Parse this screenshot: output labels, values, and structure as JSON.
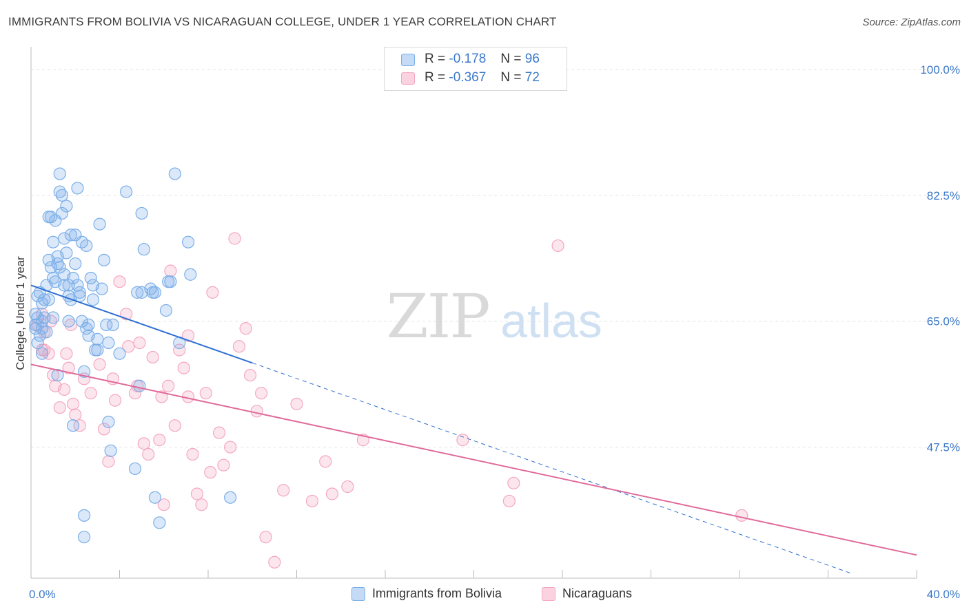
{
  "title": "IMMIGRANTS FROM BOLIVIA VS NICARAGUAN COLLEGE, UNDER 1 YEAR CORRELATION CHART",
  "source": "Source: ZipAtlas.com",
  "watermark": {
    "zip": "ZIP",
    "atlas": "atlas"
  },
  "legend": {
    "items": [
      {
        "r_label": "R =",
        "r_value": "-0.178",
        "n_label": "N =",
        "n_value": "96",
        "color": "#7aaee8"
      },
      {
        "r_label": "R =",
        "r_value": "-0.367",
        "n_label": "N =",
        "n_value": "72",
        "color": "#f4a6c0"
      }
    ]
  },
  "bottom_legend": [
    {
      "label": "Immigrants from Bolivia",
      "color": "#7aaee8"
    },
    {
      "label": "Nicaraguans",
      "color": "#f4a6c0"
    }
  ],
  "chart_data": {
    "type": "scatter",
    "ylabel": "College, Under 1 year",
    "xlabel": "",
    "xlim": [
      0,
      40
    ],
    "ylim": [
      31,
      102
    ],
    "x_tick_labels": [
      "0.0%",
      "40.0%"
    ],
    "y_ticks": [
      47.5,
      65.0,
      82.5,
      100.0
    ],
    "y_tick_labels": [
      "47.5%",
      "65.0%",
      "82.5%",
      "100.0%"
    ],
    "grid": true,
    "legend_position": "top-center",
    "series": [
      {
        "name": "Immigrants from Bolivia",
        "color": "#7aaee8",
        "trend_color": "#2e6fd1",
        "trend": {
          "x0": 0.0,
          "y0": 70.0,
          "x1": 10.0,
          "y1": 59.2,
          "dashed_to_x": 37.0,
          "dashed_to_y": 30.0
        },
        "points": [
          [
            0.2,
            66.0
          ],
          [
            0.2,
            64.5
          ],
          [
            0.3,
            68.5
          ],
          [
            0.3,
            62.0
          ],
          [
            0.3,
            65.5
          ],
          [
            0.4,
            69.0
          ],
          [
            0.4,
            63.0
          ],
          [
            0.5,
            67.5
          ],
          [
            0.5,
            65.0
          ],
          [
            0.5,
            60.5
          ],
          [
            0.5,
            64.0
          ],
          [
            0.6,
            68.0
          ],
          [
            0.6,
            65.5
          ],
          [
            0.7,
            70.0
          ],
          [
            0.7,
            63.5
          ],
          [
            0.8,
            73.5
          ],
          [
            0.8,
            68.0
          ],
          [
            0.8,
            79.5
          ],
          [
            0.9,
            72.5
          ],
          [
            0.9,
            79.5
          ],
          [
            1.0,
            71.0
          ],
          [
            1.0,
            76.0
          ],
          [
            1.0,
            65.5
          ],
          [
            1.1,
            79.0
          ],
          [
            1.1,
            70.5
          ],
          [
            1.2,
            74.0
          ],
          [
            1.2,
            73.0
          ],
          [
            1.2,
            57.5
          ],
          [
            1.3,
            83.0
          ],
          [
            1.3,
            85.5
          ],
          [
            1.3,
            72.5
          ],
          [
            1.4,
            82.5
          ],
          [
            1.4,
            80.0
          ],
          [
            1.5,
            76.5
          ],
          [
            1.5,
            71.5
          ],
          [
            1.5,
            70.0
          ],
          [
            1.6,
            74.5
          ],
          [
            1.6,
            81.0
          ],
          [
            1.7,
            68.5
          ],
          [
            1.7,
            70.0
          ],
          [
            1.7,
            65.0
          ],
          [
            1.8,
            77.0
          ],
          [
            1.8,
            68.0
          ],
          [
            1.9,
            71.0
          ],
          [
            1.9,
            50.5
          ],
          [
            2.0,
            73.0
          ],
          [
            2.0,
            77.0
          ],
          [
            2.1,
            83.5
          ],
          [
            2.1,
            70.0
          ],
          [
            2.2,
            69.0
          ],
          [
            2.2,
            68.5
          ],
          [
            2.3,
            76.0
          ],
          [
            2.3,
            65.0
          ],
          [
            2.4,
            58.0
          ],
          [
            2.5,
            75.5
          ],
          [
            2.5,
            64.0
          ],
          [
            2.6,
            64.5
          ],
          [
            2.6,
            63.0
          ],
          [
            2.7,
            71.0
          ],
          [
            2.8,
            70.0
          ],
          [
            2.8,
            68.0
          ],
          [
            2.9,
            61.0
          ],
          [
            3.0,
            61.0
          ],
          [
            3.0,
            62.5
          ],
          [
            3.1,
            78.5
          ],
          [
            3.2,
            69.5
          ],
          [
            3.3,
            73.5
          ],
          [
            3.4,
            64.5
          ],
          [
            3.5,
            62.0
          ],
          [
            3.5,
            51.0
          ],
          [
            3.6,
            47.0
          ],
          [
            3.7,
            64.5
          ],
          [
            4.0,
            60.5
          ],
          [
            4.3,
            83.0
          ],
          [
            4.7,
            44.5
          ],
          [
            4.8,
            69.0
          ],
          [
            4.9,
            56.0
          ],
          [
            5.0,
            80.0
          ],
          [
            5.0,
            69.0
          ],
          [
            5.1,
            75.0
          ],
          [
            5.4,
            69.5
          ],
          [
            5.5,
            69.0
          ],
          [
            5.6,
            69.0
          ],
          [
            5.6,
            40.5
          ],
          [
            5.8,
            37.0
          ],
          [
            6.1,
            66.5
          ],
          [
            6.2,
            70.5
          ],
          [
            6.3,
            70.5
          ],
          [
            6.5,
            85.5
          ],
          [
            6.7,
            62.0
          ],
          [
            7.1,
            76.0
          ],
          [
            7.2,
            71.5
          ],
          [
            0.2,
            64.0
          ],
          [
            2.4,
            35.0
          ],
          [
            2.4,
            38.0
          ],
          [
            9.0,
            40.5
          ]
        ]
      },
      {
        "name": "Nicaraguans",
        "color": "#f4a6c0",
        "trend_color": "#e06a9a",
        "trend": {
          "x0": 0.0,
          "y0": 59.0,
          "x1": 40.0,
          "y1": 32.5
        },
        "points": [
          [
            0.3,
            64.5
          ],
          [
            0.5,
            66.0
          ],
          [
            0.5,
            61.0
          ],
          [
            0.6,
            61.0
          ],
          [
            0.6,
            63.5
          ],
          [
            0.8,
            60.5
          ],
          [
            0.9,
            65.0
          ],
          [
            1.0,
            57.5
          ],
          [
            1.1,
            56.0
          ],
          [
            1.3,
            53.0
          ],
          [
            1.5,
            55.5
          ],
          [
            1.6,
            60.5
          ],
          [
            1.7,
            58.5
          ],
          [
            1.8,
            64.5
          ],
          [
            1.9,
            53.5
          ],
          [
            2.0,
            52.0
          ],
          [
            2.2,
            50.5
          ],
          [
            2.4,
            57.0
          ],
          [
            2.7,
            55.0
          ],
          [
            3.1,
            59.0
          ],
          [
            3.3,
            50.0
          ],
          [
            3.5,
            45.5
          ],
          [
            3.7,
            57.0
          ],
          [
            3.8,
            54.0
          ],
          [
            4.0,
            70.5
          ],
          [
            4.3,
            66.0
          ],
          [
            4.4,
            61.5
          ],
          [
            4.7,
            55.0
          ],
          [
            4.8,
            56.0
          ],
          [
            4.9,
            62.0
          ],
          [
            5.1,
            48.0
          ],
          [
            5.3,
            46.5
          ],
          [
            5.5,
            60.0
          ],
          [
            5.8,
            48.5
          ],
          [
            5.9,
            54.5
          ],
          [
            6.0,
            39.5
          ],
          [
            6.2,
            56.0
          ],
          [
            6.3,
            72.0
          ],
          [
            6.5,
            50.5
          ],
          [
            6.7,
            61.0
          ],
          [
            6.9,
            58.5
          ],
          [
            7.1,
            54.5
          ],
          [
            7.3,
            46.5
          ],
          [
            7.5,
            41.0
          ],
          [
            7.7,
            39.5
          ],
          [
            7.9,
            55.0
          ],
          [
            8.1,
            44.0
          ],
          [
            8.2,
            69.0
          ],
          [
            8.5,
            49.5
          ],
          [
            8.7,
            45.0
          ],
          [
            9.0,
            47.5
          ],
          [
            9.2,
            76.5
          ],
          [
            9.4,
            61.5
          ],
          [
            9.7,
            64.0
          ],
          [
            9.9,
            57.5
          ],
          [
            10.2,
            52.5
          ],
          [
            10.4,
            55.0
          ],
          [
            10.6,
            35.0
          ],
          [
            11.0,
            31.5
          ],
          [
            11.4,
            41.5
          ],
          [
            12.0,
            53.5
          ],
          [
            12.7,
            40.0
          ],
          [
            13.3,
            45.5
          ],
          [
            13.6,
            41.0
          ],
          [
            14.3,
            42.0
          ],
          [
            15.0,
            48.5
          ],
          [
            19.5,
            48.5
          ],
          [
            21.6,
            40.0
          ],
          [
            21.8,
            42.5
          ],
          [
            23.8,
            75.5
          ],
          [
            32.1,
            38.0
          ],
          [
            7.1,
            63.0
          ]
        ]
      }
    ]
  }
}
